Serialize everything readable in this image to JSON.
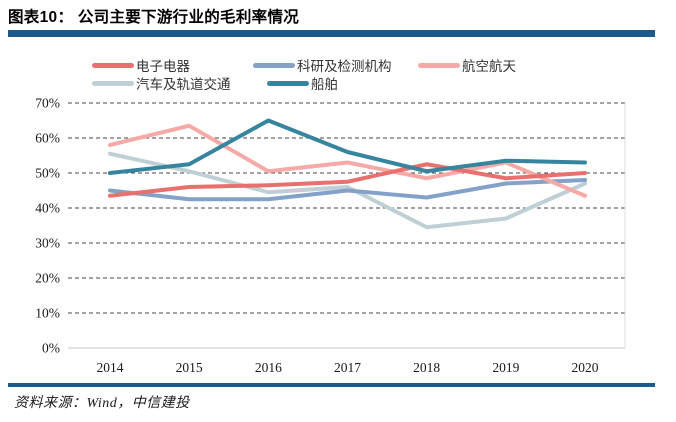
{
  "header": {
    "title": "图表10： 公司主要下游行业的毛利率情况"
  },
  "footer": {
    "source": "资料来源：Wind，中信建投"
  },
  "colors": {
    "accent_bar": "#1b5a8c",
    "gridline": "#474747",
    "axis_line": "#c4c4c4"
  },
  "chart_data": {
    "type": "line",
    "title": "公司主要下游行业的毛利率情况",
    "categories": [
      "2014",
      "2015",
      "2016",
      "2017",
      "2018",
      "2019",
      "2020"
    ],
    "series": [
      {
        "name": "电子电器",
        "color": "#e8706e",
        "values": [
          43.5,
          46,
          46.5,
          47.5,
          52.5,
          48.5,
          50
        ]
      },
      {
        "name": "科研及检测机构",
        "color": "#84a1c8",
        "values": [
          45,
          42.5,
          42.5,
          45,
          43,
          47,
          48
        ]
      },
      {
        "name": "航空航天",
        "color": "#f5aaa7",
        "values": [
          58,
          63.5,
          50.5,
          53,
          48.5,
          53,
          43.5
        ]
      },
      {
        "name": "汽车及轨道交通",
        "color": "#bed0d6",
        "values": [
          55.5,
          50.5,
          44.5,
          46,
          34.5,
          37,
          47
        ]
      },
      {
        "name": "船舶",
        "color": "#36849e",
        "values": [
          50,
          52.5,
          65,
          56,
          50.5,
          53.5,
          53
        ]
      }
    ],
    "xlabel": "",
    "ylabel": "",
    "ylim": [
      0,
      70
    ],
    "ytick_step": 10,
    "ytick_suffix": "%",
    "grid": "horizontal dashed",
    "legend_position": "top"
  }
}
